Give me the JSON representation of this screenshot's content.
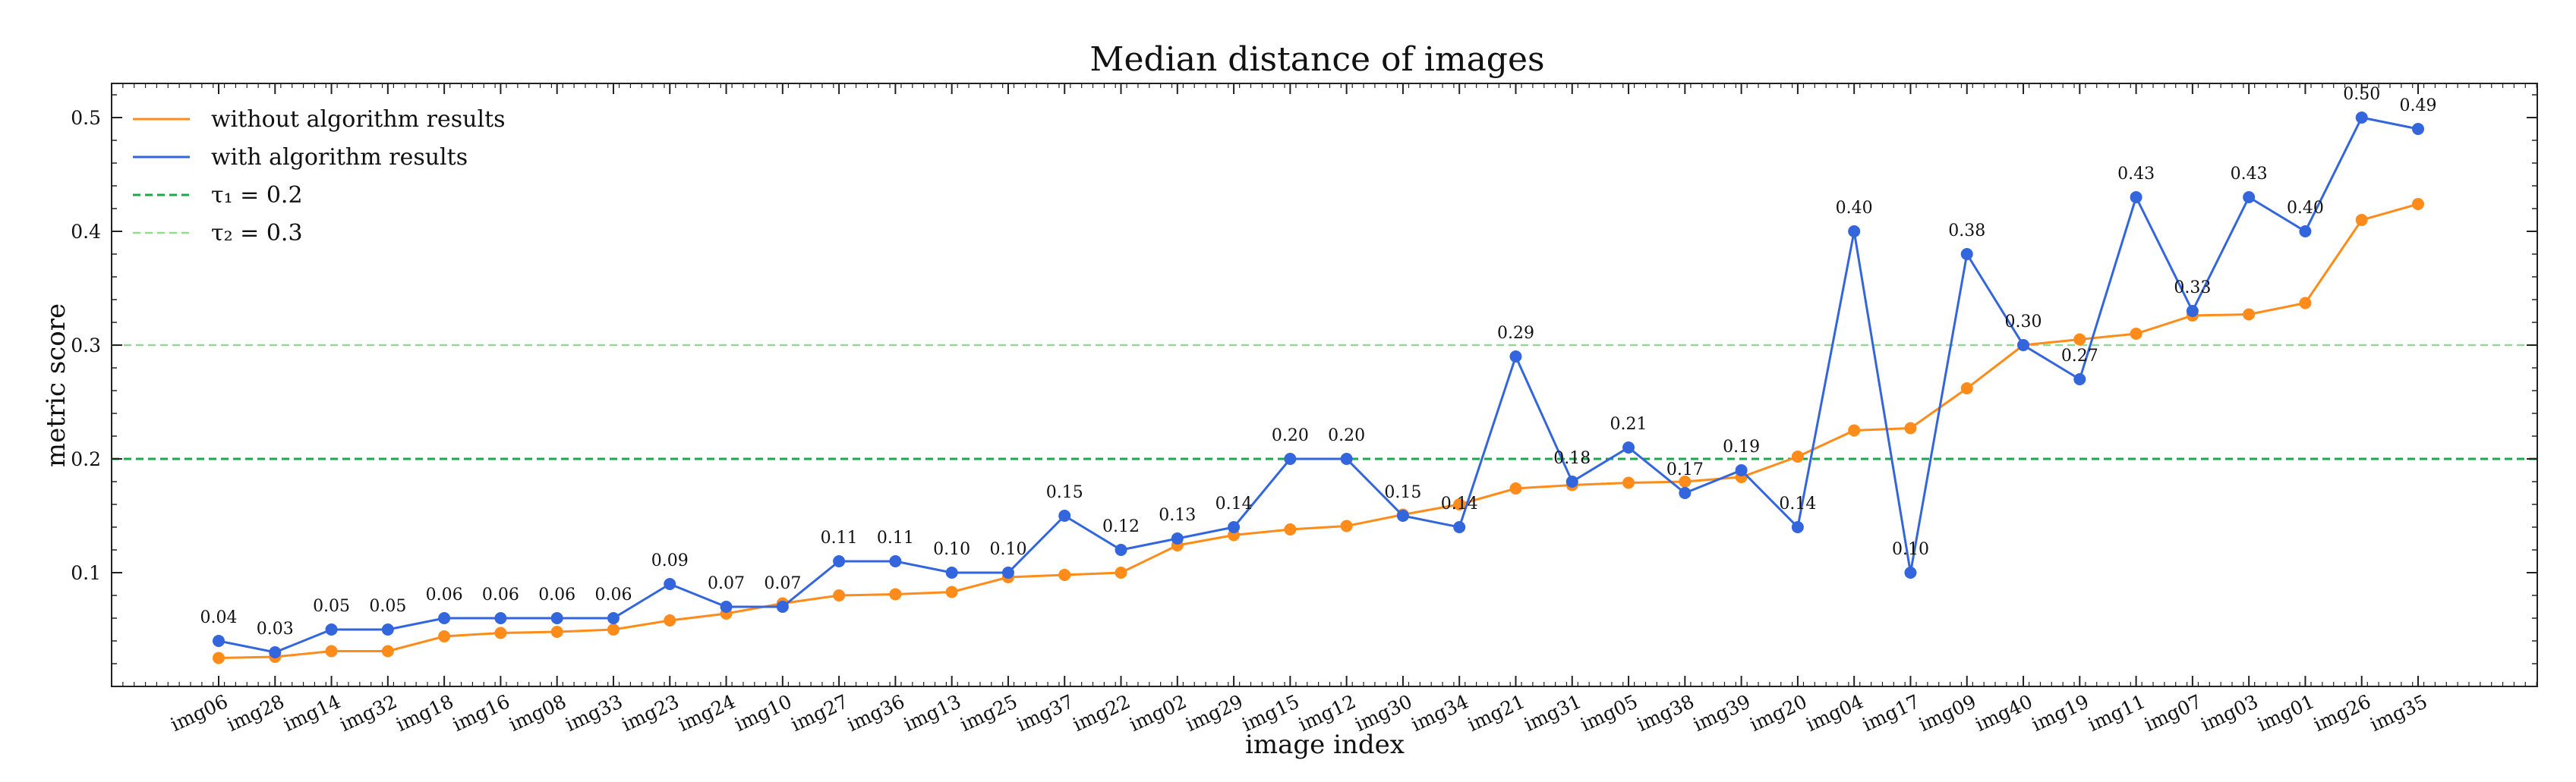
{
  "chart_data": {
    "type": "line",
    "title": "Median distance of images",
    "xlabel": "image index",
    "ylabel": "metric score",
    "ylim": [
      0.0,
      0.53
    ],
    "yticks": [
      0.1,
      0.2,
      0.3,
      0.4,
      0.5
    ],
    "ytick_labels": [
      "0.1",
      "0.2",
      "0.3",
      "0.4",
      "0.5"
    ],
    "categories": [
      "img06",
      "img28",
      "img14",
      "img32",
      "img18",
      "img16",
      "img08",
      "img33",
      "img23",
      "img24",
      "img10",
      "img27",
      "img36",
      "img13",
      "img25",
      "img37",
      "img22",
      "img02",
      "img29",
      "img15",
      "img12",
      "img30",
      "img34",
      "img21",
      "img31",
      "img05",
      "img38",
      "img39",
      "img20",
      "img04",
      "img17",
      "img09",
      "img40",
      "img19",
      "img11",
      "img07",
      "img03",
      "img01",
      "img26",
      "img35"
    ],
    "series": [
      {
        "name": "without algorithm results",
        "color": "#ff8c1a",
        "values": [
          0.025,
          0.026,
          0.031,
          0.031,
          0.044,
          0.047,
          0.048,
          0.05,
          0.058,
          0.064,
          0.073,
          0.08,
          0.081,
          0.083,
          0.096,
          0.098,
          0.1,
          0.124,
          0.133,
          0.138,
          0.141,
          0.151,
          0.16,
          0.174,
          0.177,
          0.179,
          0.18,
          0.184,
          0.202,
          0.225,
          0.227,
          0.262,
          0.3,
          0.305,
          0.31,
          0.326,
          0.327,
          0.337,
          0.41,
          0.424
        ]
      },
      {
        "name": "with algorithm results",
        "color": "#3366dd",
        "values": [
          0.04,
          0.03,
          0.05,
          0.05,
          0.06,
          0.06,
          0.06,
          0.06,
          0.09,
          0.07,
          0.07,
          0.11,
          0.11,
          0.1,
          0.1,
          0.15,
          0.12,
          0.13,
          0.14,
          0.2,
          0.2,
          0.15,
          0.14,
          0.29,
          0.18,
          0.21,
          0.17,
          0.19,
          0.14,
          0.4,
          0.1,
          0.38,
          0.3,
          0.27,
          0.43,
          0.33,
          0.43,
          0.4,
          0.5,
          0.49
        ],
        "labels": [
          "0.04",
          "0.03",
          "0.05",
          "0.05",
          "0.06",
          "0.06",
          "0.06",
          "0.06",
          "0.09",
          "0.07",
          "0.07",
          "0.11",
          "0.11",
          "0.10",
          "0.10",
          "0.15",
          "0.12",
          "0.13",
          "0.14",
          "0.20",
          "0.20",
          "0.15",
          "0.14",
          "0.29",
          "0.18",
          "0.21",
          "0.17",
          "0.19",
          "0.14",
          "0.40",
          "0.10",
          "0.38",
          "0.30",
          "0.27",
          "0.43",
          "0.33",
          "0.43",
          "0.40",
          "0.50",
          "0.49"
        ]
      }
    ],
    "hlines": [
      {
        "value": 0.2,
        "label": "τ₁ = 0.2",
        "color": "#1aa84a"
      },
      {
        "value": 0.3,
        "label": "τ₂ = 0.3",
        "color": "#8fdc8f"
      }
    ],
    "legend": {
      "placement": "upper-left",
      "entries": [
        "without algorithm results",
        "with algorithm results",
        "τ₁ = 0.2",
        "τ₂ = 0.3"
      ]
    }
  }
}
